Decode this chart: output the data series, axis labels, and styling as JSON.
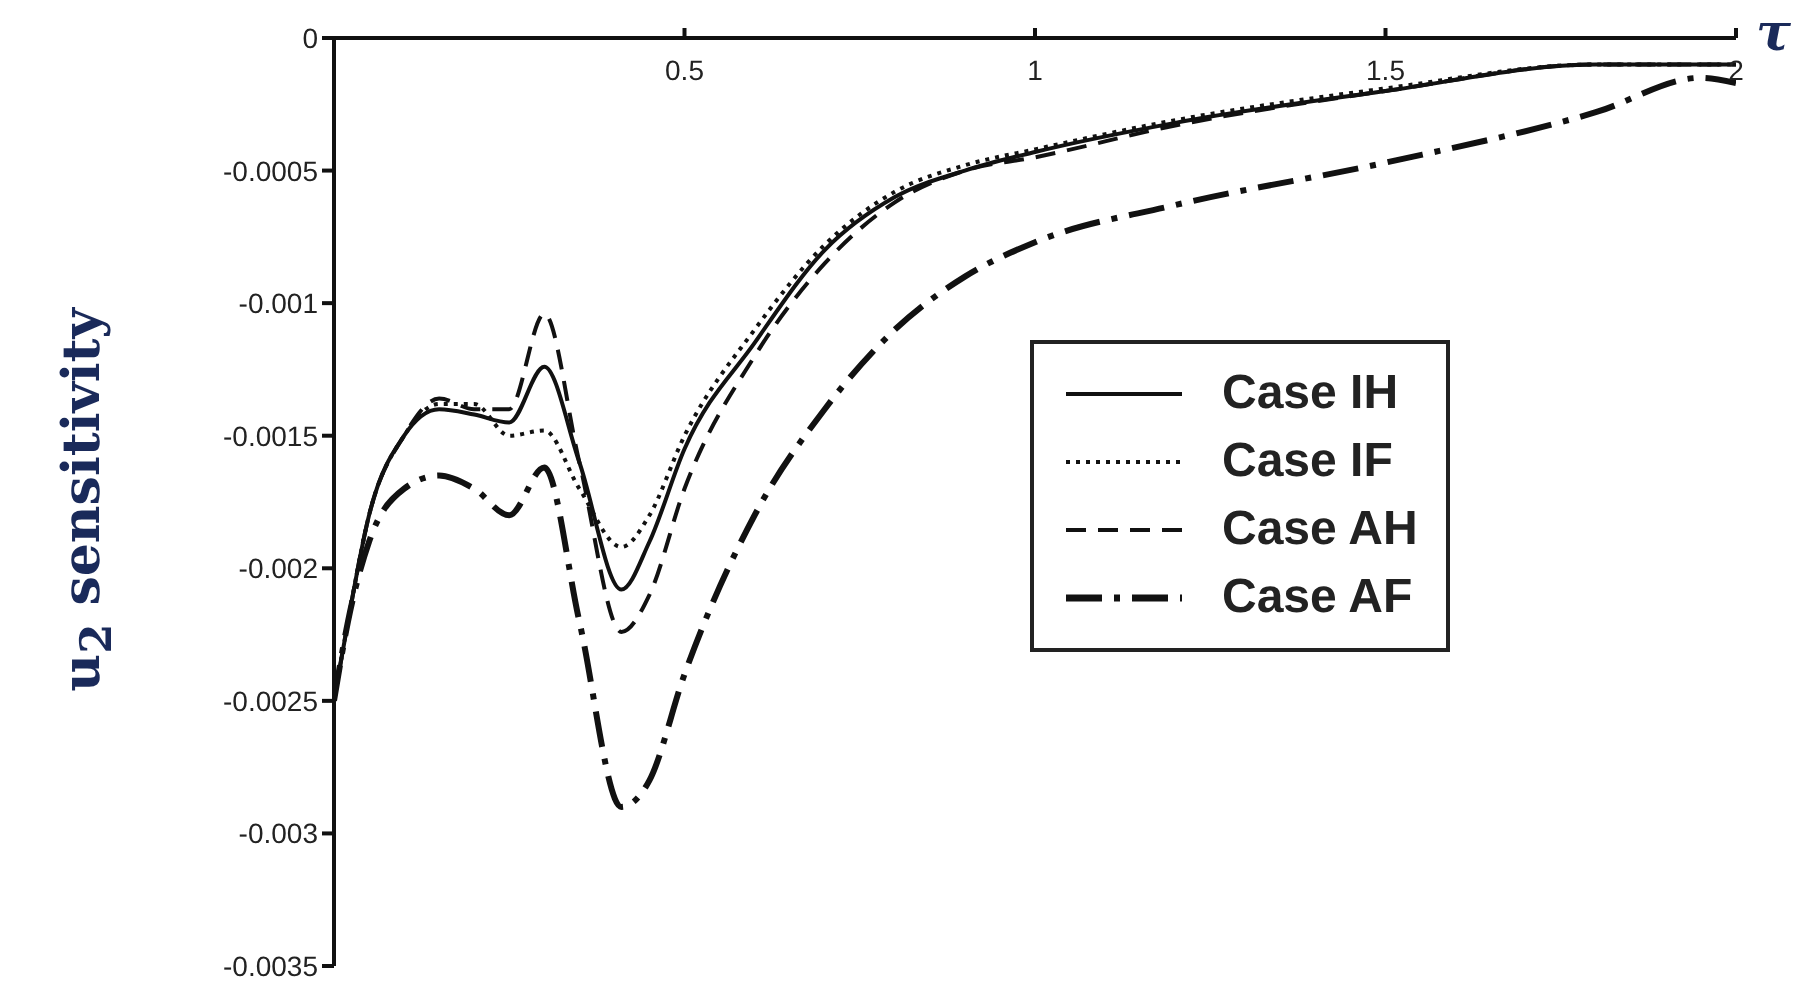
{
  "chart_data": {
    "type": "line",
    "xlabel": "τ",
    "ylabel": "u$_{2}$ sensitivity",
    "x": [
      0,
      0.02,
      0.05,
      0.1,
      0.15,
      0.2,
      0.25,
      0.3,
      0.35,
      0.41,
      0.45,
      0.5,
      0.6,
      0.7,
      0.8,
      0.9,
      1,
      1.2,
      1.5,
      1.8,
      1.95,
      2
    ],
    "series": [
      {
        "name": "Case IH",
        "color": "#111111",
        "line_style": "solid",
        "values": [
          -0.0025,
          -0.0022,
          -0.0018,
          -0.0015,
          -0.0014,
          -0.00142,
          -0.00145,
          -0.00124,
          -0.0016,
          -0.00208,
          -0.0019,
          -0.00155,
          -0.00115,
          -0.0008,
          -0.0006,
          -0.0005,
          -0.00043,
          -0.00032,
          -0.0002,
          -0.0001,
          -0.0001,
          -0.0001
        ]
      },
      {
        "name": "Case IF",
        "color": "#111111",
        "line_style": "dotted",
        "values": [
          -0.0025,
          -0.0022,
          -0.0018,
          -0.0015,
          -0.00138,
          -0.00138,
          -0.0015,
          -0.00148,
          -0.0017,
          -0.00192,
          -0.0018,
          -0.0015,
          -0.0011,
          -0.00078,
          -0.00058,
          -0.00048,
          -0.00042,
          -0.00031,
          -0.00019,
          -0.0001,
          -0.0001,
          -0.0001
        ]
      },
      {
        "name": "Case AH",
        "color": "#111111",
        "line_style": "dashed",
        "values": [
          -0.0025,
          -0.0022,
          -0.0018,
          -0.0015,
          -0.00136,
          -0.0014,
          -0.0014,
          -0.00104,
          -0.0016,
          -0.00224,
          -0.0021,
          -0.0017,
          -0.0012,
          -0.00085,
          -0.00062,
          -0.0005,
          -0.00045,
          -0.00033,
          -0.0002,
          -0.0001,
          -0.0001,
          -0.0001
        ]
      },
      {
        "name": "Case AF",
        "color": "#111111",
        "line_style": "dashed",
        "values": [
          -0.0025,
          -0.0022,
          -0.0019,
          -0.0017,
          -0.00165,
          -0.0017,
          -0.0018,
          -0.00162,
          -0.0022,
          -0.0029,
          -0.0028,
          -0.0024,
          -0.0018,
          -0.0014,
          -0.0011,
          -0.0009,
          -0.00077,
          -0.00063,
          -0.00047,
          -0.00028,
          -0.00015,
          -0.00017
        ]
      }
    ],
    "xlim": [
      0,
      2
    ],
    "xticks": [
      0.5,
      1,
      1.5,
      2
    ],
    "ylim": [
      -0.0035,
      0
    ],
    "yticks": [
      0,
      -0.0005,
      -0.001,
      -0.0015,
      -0.002,
      -0.0025,
      -0.003,
      -0.0035
    ],
    "legend": "right",
    "marker": "none"
  }
}
